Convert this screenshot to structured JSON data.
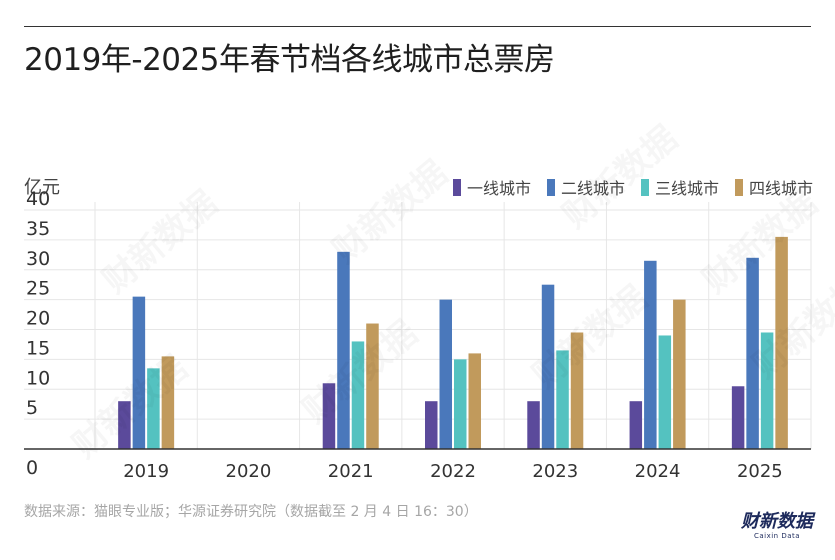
{
  "title": "2019年-2025年春节档各线城市总票房",
  "unit_label": "亿元",
  "source": "数据来源：猫眼专业版；华源证券研究院（数据截至 2 月 4 日 16：30）",
  "brand": {
    "name_cn": "财新数据",
    "name_en": "Caixin Data"
  },
  "watermark_text": "财新数据",
  "colors": {
    "tier1": "#5b4a9b",
    "tier2": "#4a78bb",
    "tier3": "#54c2c0",
    "tier4": "#c19a5c",
    "grid": "#e6e6e6",
    "axis": "#333333"
  },
  "chart_data": {
    "type": "bar",
    "categories": [
      "2019",
      "2020",
      "2021",
      "2022",
      "2023",
      "2024",
      "2025"
    ],
    "series": [
      {
        "name": "一线城市",
        "values": [
          8,
          null,
          11,
          8,
          8,
          8,
          10.5
        ]
      },
      {
        "name": "二线城市",
        "values": [
          25.5,
          null,
          33,
          25,
          27.5,
          31.5,
          32
        ]
      },
      {
        "name": "三线城市",
        "values": [
          13.5,
          null,
          18,
          15,
          16.5,
          19,
          19.5
        ]
      },
      {
        "name": "四线城市",
        "values": [
          15.5,
          null,
          21,
          16,
          19.5,
          25,
          35.5
        ]
      }
    ],
    "ylim": [
      0,
      40
    ],
    "yticks": [
      0,
      5,
      10,
      15,
      20,
      25,
      30,
      35,
      40
    ],
    "xlabel": "",
    "ylabel": "亿元",
    "grid": true,
    "legend": "top-right"
  }
}
